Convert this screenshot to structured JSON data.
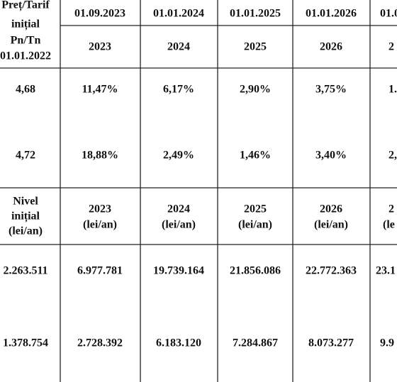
{
  "table": {
    "header": {
      "first": [
        "Preț/Tarif",
        "inițial",
        "Pn/Tn",
        "01.01.2022"
      ],
      "dates": [
        "01.09.2023",
        "01.01.2024",
        "01.01.2025",
        "01.01.2026",
        "01.0"
      ],
      "years": [
        "2023",
        "2024",
        "2025",
        "2026",
        "2"
      ]
    },
    "rows": [
      [
        "4,68",
        "11,47%",
        "6,17%",
        "2,90%",
        "3,75%",
        "1."
      ],
      [
        "4,72",
        "18,88%",
        "2,49%",
        "1,46%",
        "3,40%",
        "2,"
      ]
    ],
    "header2": {
      "first": [
        "Nivel",
        "inițial",
        "(lei/an)"
      ],
      "cols": [
        [
          "2023",
          "(lei/an)"
        ],
        [
          "2024",
          "(lei/an)"
        ],
        [
          "2025",
          "(lei/an)"
        ],
        [
          "2026",
          "(lei/an)"
        ],
        [
          "2",
          "(le"
        ]
      ]
    },
    "rows2": [
      [
        "2.263.511",
        "6.977.781",
        "19.739.164",
        "21.856.086",
        "22.772.363",
        "23.1"
      ],
      [
        "1.378.754",
        "2.728.392",
        "6.183.120",
        "7.284.867",
        "8.073.277",
        "9.9"
      ]
    ]
  }
}
